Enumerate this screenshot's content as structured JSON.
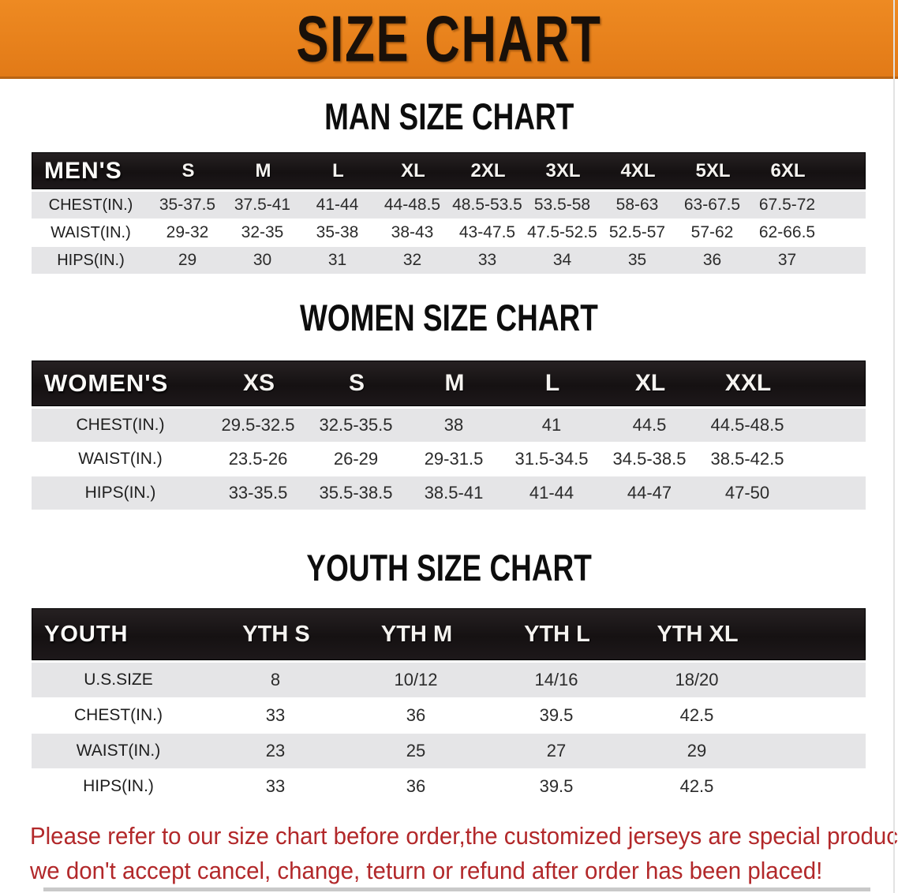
{
  "banner": {
    "title": "SIZE CHART",
    "bg_color": "#e8811e",
    "text_color": "#191009"
  },
  "tables": {
    "men": {
      "heading": "MAN SIZE CHART",
      "label": "MEN'S",
      "columns": [
        "S",
        "M",
        "L",
        "XL",
        "2XL",
        "3XL",
        "4XL",
        "5XL",
        "6XL"
      ],
      "rows": [
        {
          "label": "CHEST(IN.)",
          "values": [
            "35-37.5",
            "37.5-41",
            "41-44",
            "44-48.5",
            "48.5-53.5",
            "53.5-58",
            "58-63",
            "63-67.5",
            "67.5-72"
          ]
        },
        {
          "label": "WAIST(IN.)",
          "values": [
            "29-32",
            "32-35",
            "35-38",
            "38-43",
            "43-47.5",
            "47.5-52.5",
            "52.5-57",
            "57-62",
            "62-66.5"
          ]
        },
        {
          "label": "HIPS(IN.)",
          "values": [
            "29",
            "30",
            "31",
            "32",
            "33",
            "34",
            "35",
            "36",
            "37"
          ]
        }
      ]
    },
    "women": {
      "heading": "WOMEN SIZE CHART",
      "label": "WOMEN'S",
      "columns": [
        "XS",
        "S",
        "M",
        "L",
        "XL",
        "XXL"
      ],
      "rows": [
        {
          "label": "CHEST(IN.)",
          "values": [
            "29.5-32.5",
            "32.5-35.5",
            "38",
            "41",
            "44.5",
            "44.5-48.5"
          ]
        },
        {
          "label": "WAIST(IN.)",
          "values": [
            "23.5-26",
            "26-29",
            "29-31.5",
            "31.5-34.5",
            "34.5-38.5",
            "38.5-42.5"
          ]
        },
        {
          "label": "HIPS(IN.)",
          "values": [
            "33-35.5",
            "35.5-38.5",
            "38.5-41",
            "41-44",
            "44-47",
            "47-50"
          ]
        }
      ]
    },
    "youth": {
      "heading": "YOUTH SIZE CHART",
      "label": "YOUTH",
      "columns": [
        "YTH S",
        "YTH M",
        "YTH L",
        "YTH XL"
      ],
      "rows": [
        {
          "label": "U.S.SIZE",
          "values": [
            "8",
            "10/12",
            "14/16",
            "18/20"
          ]
        },
        {
          "label": "CHEST(IN.)",
          "values": [
            "33",
            "36",
            "39.5",
            "42.5"
          ]
        },
        {
          "label": "WAIST(IN.)",
          "values": [
            "23",
            "25",
            "27",
            "29"
          ]
        },
        {
          "label": "HIPS(IN.)",
          "values": [
            "33",
            "36",
            "39.5",
            "42.5"
          ]
        }
      ]
    }
  },
  "disclaimer": {
    "line1": "Please refer to our size chart before order,the customized jerseys are special products,",
    "line2": "we don't accept cancel, change, teturn or refund after order has been placed!",
    "color": "#b2282a"
  }
}
